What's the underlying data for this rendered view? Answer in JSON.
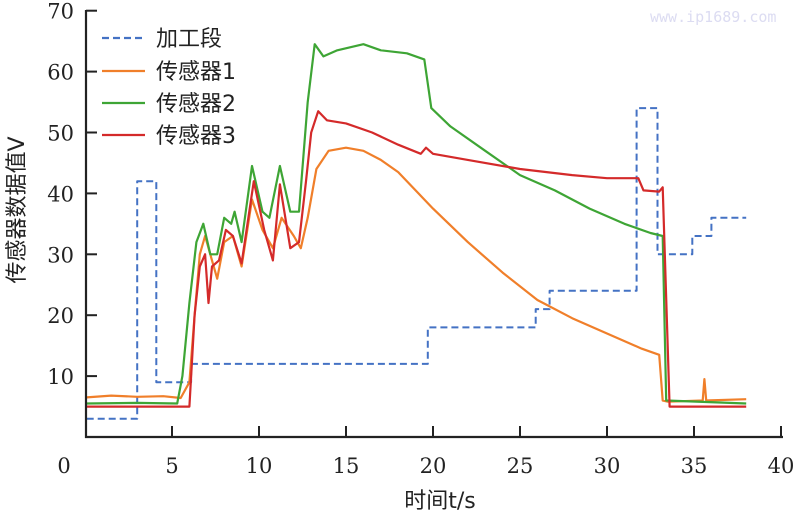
{
  "watermark": "www.ip1689.com",
  "chart_data": {
    "type": "line",
    "title": "",
    "xlabel": "时间t/s",
    "ylabel": "传感器数据值V",
    "xlim": [
      0,
      40
    ],
    "ylim": [
      0,
      70
    ],
    "xticks": [
      0,
      5,
      10,
      15,
      20,
      25,
      30,
      35,
      40
    ],
    "yticks": [
      10,
      20,
      30,
      40,
      50,
      60,
      70
    ],
    "grid": false,
    "legend_position": "upper-left",
    "series": [
      {
        "name": "加工段",
        "color": "#4472c4",
        "style": "dashed",
        "points": [
          [
            0.1,
            3
          ],
          [
            3.0,
            3
          ],
          [
            3.0,
            42
          ],
          [
            4.1,
            42
          ],
          [
            4.1,
            9
          ],
          [
            6.1,
            9
          ],
          [
            6.1,
            12
          ],
          [
            19.7,
            12
          ],
          [
            19.7,
            18
          ],
          [
            25.9,
            18
          ],
          [
            25.9,
            21
          ],
          [
            26.7,
            21
          ],
          [
            26.7,
            24
          ],
          [
            31.7,
            24
          ],
          [
            31.7,
            54
          ],
          [
            32.9,
            54
          ],
          [
            32.9,
            30
          ],
          [
            34.9,
            30
          ],
          [
            34.9,
            33
          ],
          [
            36.0,
            33
          ],
          [
            36.0,
            36
          ],
          [
            38.0,
            36
          ]
        ]
      },
      {
        "name": "传感器1",
        "color": "#f07f2a",
        "style": "solid",
        "points": [
          [
            0.1,
            6.5
          ],
          [
            1.5,
            6.8
          ],
          [
            3.0,
            6.6
          ],
          [
            4.5,
            6.7
          ],
          [
            5.5,
            6.4
          ],
          [
            6.0,
            9
          ],
          [
            6.3,
            20
          ],
          [
            6.6,
            30
          ],
          [
            6.9,
            33
          ],
          [
            7.3,
            29
          ],
          [
            7.6,
            26
          ],
          [
            8.0,
            32
          ],
          [
            8.5,
            33
          ],
          [
            9.0,
            28
          ],
          [
            9.6,
            39
          ],
          [
            10.2,
            34
          ],
          [
            10.8,
            31
          ],
          [
            11.3,
            36
          ],
          [
            12.0,
            33
          ],
          [
            12.4,
            31
          ],
          [
            12.8,
            36
          ],
          [
            13.3,
            44
          ],
          [
            14.0,
            47
          ],
          [
            15.0,
            47.5
          ],
          [
            16.0,
            47
          ],
          [
            17.0,
            45.5
          ],
          [
            18.0,
            43.5
          ],
          [
            19.0,
            40.5
          ],
          [
            20.0,
            37.5
          ],
          [
            22.0,
            32
          ],
          [
            24.0,
            27
          ],
          [
            26.0,
            22.5
          ],
          [
            28.0,
            19.5
          ],
          [
            30.0,
            17
          ],
          [
            32.0,
            14.5
          ],
          [
            33.0,
            13.5
          ],
          [
            33.2,
            6
          ],
          [
            33.5,
            5.8
          ],
          [
            35.5,
            6
          ],
          [
            35.6,
            9.5
          ],
          [
            35.7,
            6
          ],
          [
            38.0,
            6.2
          ]
        ]
      },
      {
        "name": "传感器2",
        "color": "#3ea535",
        "style": "solid",
        "points": [
          [
            0.1,
            5.5
          ],
          [
            3.0,
            5.6
          ],
          [
            5.3,
            5.5
          ],
          [
            5.6,
            10
          ],
          [
            6.0,
            22
          ],
          [
            6.4,
            32
          ],
          [
            6.8,
            35
          ],
          [
            7.2,
            30
          ],
          [
            7.6,
            30
          ],
          [
            8.0,
            36
          ],
          [
            8.4,
            35
          ],
          [
            8.6,
            37
          ],
          [
            9.0,
            32
          ],
          [
            9.6,
            44.5
          ],
          [
            10.2,
            37
          ],
          [
            10.6,
            36
          ],
          [
            11.2,
            44.5
          ],
          [
            11.8,
            37
          ],
          [
            12.3,
            37
          ],
          [
            12.8,
            55
          ],
          [
            13.2,
            64.5
          ],
          [
            13.7,
            62.5
          ],
          [
            14.5,
            63.5
          ],
          [
            16.0,
            64.5
          ],
          [
            17.0,
            63.5
          ],
          [
            18.5,
            63
          ],
          [
            19.5,
            62
          ],
          [
            19.9,
            54
          ],
          [
            21.0,
            51
          ],
          [
            23.0,
            47
          ],
          [
            25.0,
            43
          ],
          [
            27.0,
            40.5
          ],
          [
            29.0,
            37.5
          ],
          [
            31.0,
            35
          ],
          [
            32.5,
            33.5
          ],
          [
            33.2,
            33
          ],
          [
            33.4,
            6
          ],
          [
            38.0,
            5.5
          ]
        ]
      },
      {
        "name": "传感器3",
        "color": "#d42a2a",
        "style": "solid",
        "points": [
          [
            0.1,
            5
          ],
          [
            3.0,
            5
          ],
          [
            6.0,
            5
          ],
          [
            6.3,
            20
          ],
          [
            6.6,
            28
          ],
          [
            6.9,
            30
          ],
          [
            7.1,
            22
          ],
          [
            7.3,
            28
          ],
          [
            7.7,
            29
          ],
          [
            8.1,
            34
          ],
          [
            8.5,
            33
          ],
          [
            9.0,
            28.5
          ],
          [
            9.7,
            42
          ],
          [
            10.3,
            34
          ],
          [
            10.8,
            29
          ],
          [
            11.2,
            41.5
          ],
          [
            11.8,
            31
          ],
          [
            12.3,
            32
          ],
          [
            12.7,
            42
          ],
          [
            13.0,
            50
          ],
          [
            13.4,
            53.5
          ],
          [
            13.9,
            52
          ],
          [
            15.0,
            51.5
          ],
          [
            16.5,
            50
          ],
          [
            18.0,
            48
          ],
          [
            19.3,
            46.5
          ],
          [
            19.6,
            47.5
          ],
          [
            20.0,
            46.5
          ],
          [
            22.0,
            45.5
          ],
          [
            25.0,
            44
          ],
          [
            28.0,
            43
          ],
          [
            30.0,
            42.5
          ],
          [
            31.8,
            42.5
          ],
          [
            32.1,
            40.5
          ],
          [
            33.0,
            40.3
          ],
          [
            33.2,
            41
          ],
          [
            33.6,
            5
          ],
          [
            38.0,
            5
          ]
        ]
      }
    ]
  }
}
